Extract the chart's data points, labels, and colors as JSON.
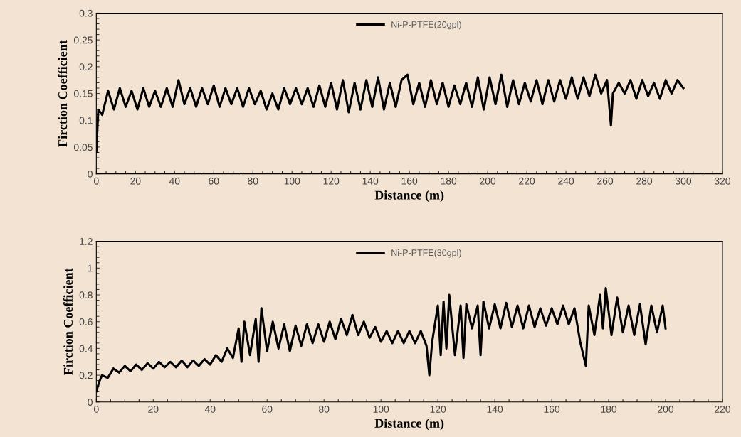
{
  "chart_data": [
    {
      "type": "line",
      "xlabel": "Distance (m)",
      "ylabel": "Firction Coefficient",
      "xlim": [
        0,
        320
      ],
      "ylim": [
        0,
        0.3
      ],
      "xticks": [
        0,
        20,
        40,
        60,
        80,
        100,
        120,
        140,
        160,
        180,
        200,
        220,
        240,
        260,
        280,
        300,
        320
      ],
      "yticks": [
        0,
        0.05,
        0.1,
        0.15,
        0.2,
        0.25,
        0.3
      ],
      "grid": false,
      "legend": "top",
      "marker": "none",
      "line_style": "solid",
      "series": [
        {
          "name": "Ni-P-PTFE(20gpl)",
          "color": "#000000",
          "x": [
            0,
            1,
            3,
            6,
            9,
            12,
            15,
            18,
            21,
            24,
            27,
            30,
            33,
            36,
            39,
            42,
            45,
            48,
            51,
            54,
            57,
            60,
            63,
            66,
            69,
            72,
            75,
            78,
            81,
            84,
            87,
            90,
            93,
            96,
            99,
            102,
            105,
            108,
            111,
            114,
            117,
            120,
            123,
            126,
            129,
            132,
            135,
            138,
            141,
            144,
            147,
            150,
            153,
            156,
            159,
            162,
            165,
            168,
            171,
            174,
            177,
            180,
            183,
            186,
            189,
            192,
            195,
            198,
            201,
            204,
            207,
            210,
            213,
            216,
            219,
            222,
            225,
            228,
            231,
            234,
            237,
            240,
            243,
            246,
            249,
            252,
            255,
            258,
            261,
            263,
            264,
            267,
            270,
            273,
            276,
            279,
            282,
            285,
            288,
            291,
            294,
            297,
            300
          ],
          "values": [
            0.04,
            0.12,
            0.11,
            0.155,
            0.12,
            0.16,
            0.125,
            0.155,
            0.12,
            0.16,
            0.125,
            0.155,
            0.125,
            0.16,
            0.125,
            0.175,
            0.13,
            0.16,
            0.125,
            0.16,
            0.13,
            0.165,
            0.125,
            0.16,
            0.13,
            0.16,
            0.125,
            0.16,
            0.13,
            0.155,
            0.12,
            0.15,
            0.12,
            0.16,
            0.13,
            0.16,
            0.13,
            0.16,
            0.125,
            0.165,
            0.125,
            0.17,
            0.12,
            0.175,
            0.115,
            0.17,
            0.12,
            0.175,
            0.125,
            0.18,
            0.12,
            0.17,
            0.125,
            0.175,
            0.185,
            0.13,
            0.17,
            0.125,
            0.175,
            0.13,
            0.17,
            0.125,
            0.165,
            0.13,
            0.17,
            0.125,
            0.18,
            0.12,
            0.18,
            0.13,
            0.185,
            0.125,
            0.175,
            0.13,
            0.17,
            0.135,
            0.175,
            0.13,
            0.175,
            0.135,
            0.175,
            0.14,
            0.18,
            0.14,
            0.18,
            0.145,
            0.185,
            0.15,
            0.175,
            0.09,
            0.15,
            0.17,
            0.15,
            0.175,
            0.14,
            0.175,
            0.145,
            0.17,
            0.14,
            0.175,
            0.15,
            0.175,
            0.16
          ]
        }
      ]
    },
    {
      "type": "line",
      "xlabel": "Distance (m)",
      "ylabel": "Firction Coefficient",
      "xlim": [
        0,
        220
      ],
      "ylim": [
        0,
        1.2
      ],
      "xticks": [
        0,
        20,
        40,
        60,
        80,
        100,
        120,
        140,
        160,
        180,
        200,
        220
      ],
      "yticks": [
        0,
        0.2,
        0.4,
        0.6,
        0.8,
        1,
        1.2
      ],
      "grid": false,
      "legend": "top",
      "marker": "none",
      "line_style": "solid",
      "series": [
        {
          "name": "Ni-P-PTFE(30gpl)",
          "color": "#000000",
          "x": [
            0,
            1,
            2,
            4,
            6,
            8,
            10,
            12,
            14,
            16,
            18,
            20,
            22,
            24,
            26,
            28,
            30,
            32,
            34,
            36,
            38,
            40,
            42,
            44,
            46,
            48,
            50,
            51,
            52,
            54,
            56,
            57,
            58,
            60,
            62,
            64,
            66,
            68,
            70,
            72,
            74,
            76,
            78,
            80,
            82,
            84,
            86,
            88,
            90,
            92,
            94,
            96,
            98,
            100,
            102,
            104,
            106,
            108,
            110,
            112,
            114,
            116,
            117,
            118,
            120,
            121,
            122,
            123,
            124,
            126,
            128,
            129,
            130,
            132,
            134,
            135,
            136,
            138,
            140,
            142,
            144,
            146,
            148,
            150,
            152,
            154,
            156,
            158,
            160,
            162,
            164,
            166,
            168,
            170,
            172,
            173,
            175,
            177,
            178,
            179,
            181,
            183,
            185,
            187,
            189,
            191,
            193,
            195,
            197,
            199,
            200
          ],
          "values": [
            0.08,
            0.15,
            0.2,
            0.18,
            0.25,
            0.22,
            0.27,
            0.23,
            0.28,
            0.24,
            0.29,
            0.25,
            0.3,
            0.26,
            0.3,
            0.26,
            0.31,
            0.26,
            0.31,
            0.27,
            0.32,
            0.28,
            0.35,
            0.3,
            0.4,
            0.33,
            0.55,
            0.3,
            0.6,
            0.35,
            0.62,
            0.3,
            0.7,
            0.38,
            0.6,
            0.4,
            0.58,
            0.38,
            0.57,
            0.42,
            0.58,
            0.44,
            0.58,
            0.45,
            0.6,
            0.47,
            0.62,
            0.5,
            0.65,
            0.5,
            0.6,
            0.48,
            0.56,
            0.45,
            0.53,
            0.44,
            0.53,
            0.44,
            0.53,
            0.44,
            0.53,
            0.42,
            0.2,
            0.45,
            0.72,
            0.35,
            0.75,
            0.4,
            0.8,
            0.35,
            0.72,
            0.33,
            0.73,
            0.55,
            0.72,
            0.35,
            0.75,
            0.55,
            0.73,
            0.55,
            0.74,
            0.56,
            0.72,
            0.55,
            0.72,
            0.56,
            0.7,
            0.57,
            0.7,
            0.58,
            0.72,
            0.58,
            0.7,
            0.45,
            0.27,
            0.72,
            0.5,
            0.8,
            0.55,
            0.85,
            0.5,
            0.78,
            0.52,
            0.72,
            0.5,
            0.73,
            0.43,
            0.72,
            0.52,
            0.72,
            0.55
          ]
        }
      ]
    }
  ]
}
